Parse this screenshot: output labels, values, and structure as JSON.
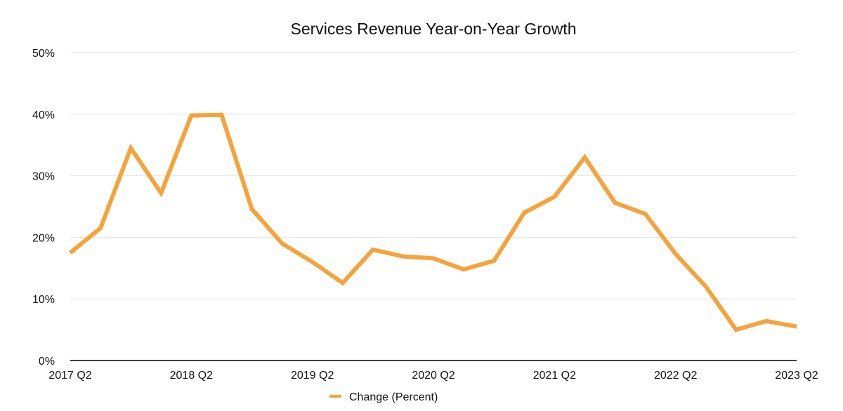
{
  "chart_data": {
    "type": "line",
    "title": "Services Revenue Year-on-Year Growth",
    "xlabel": "",
    "ylabel": "",
    "ylim": [
      0,
      50
    ],
    "y_ticks": [
      "0%",
      "10%",
      "20%",
      "30%",
      "40%",
      "50%"
    ],
    "y_tick_values": [
      0,
      10,
      20,
      30,
      40,
      50
    ],
    "x_tick_labels": [
      "2017 Q2",
      "2018 Q2",
      "2019 Q2",
      "2020 Q2",
      "2021 Q2",
      "2022 Q2",
      "2023 Q2"
    ],
    "x_tick_indices": [
      0,
      4,
      8,
      12,
      16,
      20,
      24
    ],
    "categories": [
      "2017 Q2",
      "2017 Q3",
      "2017 Q4",
      "2018 Q1",
      "2018 Q2",
      "2018 Q3",
      "2018 Q4",
      "2019 Q1",
      "2019 Q2",
      "2019 Q3",
      "2019 Q4",
      "2020 Q1",
      "2020 Q2",
      "2020 Q3",
      "2020 Q4",
      "2021 Q1",
      "2021 Q2",
      "2021 Q3",
      "2021 Q4",
      "2022 Q1",
      "2022 Q2",
      "2022 Q3",
      "2022 Q4",
      "2023 Q1",
      "2023 Q2"
    ],
    "grid": true,
    "legend_position": "bottom-center",
    "series": [
      {
        "name": "Change (Percent)",
        "color": "#f5a33a",
        "values": [
          17.5,
          21.5,
          34.5,
          27.2,
          39.8,
          39.9,
          24.6,
          19.0,
          16.0,
          12.6,
          18.0,
          16.9,
          16.6,
          14.8,
          16.2,
          24.0,
          26.6,
          33.0,
          25.6,
          23.8,
          17.3,
          12.0,
          5.0,
          6.4,
          5.5
        ]
      }
    ]
  }
}
